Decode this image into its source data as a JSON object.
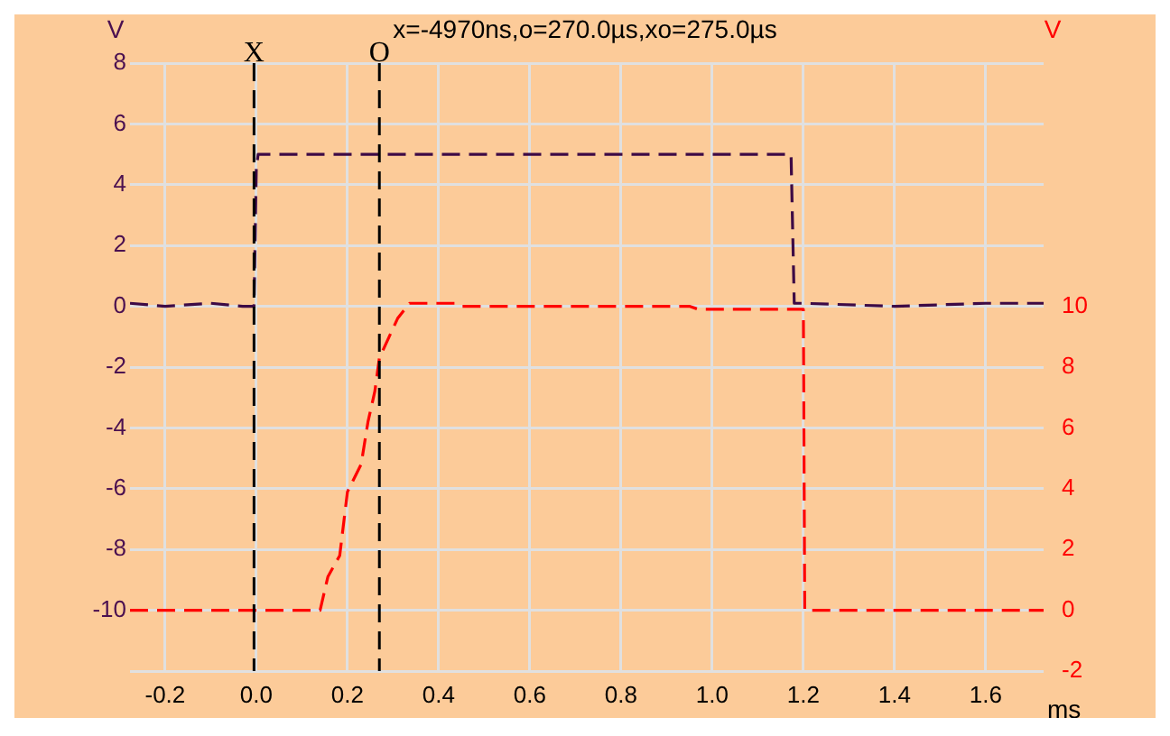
{
  "chart_data": {
    "type": "line",
    "title": "x=-4970ns,o=270.0µs,xo=275.0µs",
    "xlabel": "ms",
    "ylabel": "V",
    "y2label": "V",
    "xlim": [
      -0.277,
      1.727
    ],
    "xticks": [
      -0.2,
      {
        "value": 0,
        "label": "0.0"
      },
      0.2,
      0.4,
      0.6,
      0.8,
      {
        "value": 1,
        "label": "1.0"
      },
      1.2,
      1.4,
      1.6
    ],
    "ylim": [
      -12,
      8
    ],
    "yticks": [
      -10,
      -8,
      -6,
      -4,
      -2,
      0,
      2,
      4,
      6,
      8
    ],
    "y2lim": [
      -2,
      18
    ],
    "y2ticks": [
      -2,
      0,
      2,
      4,
      6,
      8,
      10
    ],
    "grid": true,
    "legend": false,
    "line_style": "dashed",
    "marker": "none",
    "series": [
      {
        "color": "#3d0a45",
        "x": [
          -0.277,
          -0.2,
          -0.1,
          -0.03,
          -0.005,
          0.0,
          0.004,
          0.3,
          0.6,
          0.9,
          1.173,
          1.18,
          1.2,
          1.4,
          1.6,
          1.727
        ],
        "values": [
          0.1,
          0.0,
          0.1,
          0.0,
          0.0,
          4.5,
          5.0,
          5.0,
          5.0,
          5.0,
          5.0,
          0.1,
          0.1,
          0.0,
          0.1,
          0.1
        ]
      },
      {
        "color": "#ff0000",
        "axis": "y2",
        "x": [
          -0.277,
          0.0,
          0.14,
          0.157,
          0.183,
          0.2,
          0.23,
          0.245,
          0.26,
          0.27,
          0.31,
          0.336,
          0.44,
          0.45,
          0.7,
          0.95,
          0.97,
          1.2,
          1.203,
          1.5,
          1.727
        ],
        "values": [
          0,
          0,
          0,
          1.1,
          1.8,
          3.9,
          4.8,
          6.2,
          7.2,
          8.3,
          9.6,
          10.1,
          10.1,
          10,
          10,
          10,
          9.9,
          9.9,
          0,
          0,
          0
        ]
      }
    ],
    "ref_lines": [
      {
        "axis": "x",
        "value": -0.005,
        "label": "X",
        "color": "#000000",
        "line_style": "dashed"
      },
      {
        "axis": "x",
        "value": 0.27,
        "label": "O",
        "color": "#000000",
        "line_style": "dashed"
      }
    ]
  }
}
